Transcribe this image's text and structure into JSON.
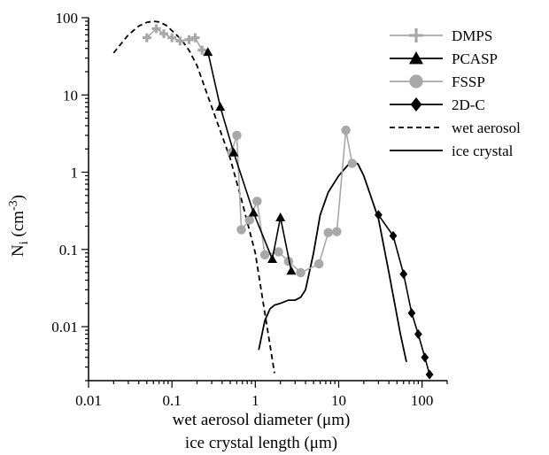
{
  "chart_data": {
    "type": "line",
    "xscale": "log",
    "yscale": "log",
    "xlim": [
      0.01,
      200
    ],
    "ylim": [
      0.002,
      100
    ],
    "xlabel_line1": "wet aerosol diameter (μm)",
    "xlabel_line2": "ice crystal length (μm)",
    "ylabel": {
      "base": "N",
      "sub": "i",
      "unit_open": " (cm",
      "unit_sup": "-3",
      "unit_close": ")"
    },
    "xticks": [
      {
        "value": 0.01,
        "label": "0.01"
      },
      {
        "value": 0.1,
        "label": "0.1"
      },
      {
        "value": 1,
        "label": "1"
      },
      {
        "value": 10,
        "label": "10"
      },
      {
        "value": 100,
        "label": "100"
      }
    ],
    "yticks": [
      {
        "value": 0.01,
        "label": "0.01"
      },
      {
        "value": 0.1,
        "label": "0.1"
      },
      {
        "value": 1,
        "label": "1"
      },
      {
        "value": 10,
        "label": "10"
      },
      {
        "value": 100,
        "label": "100"
      }
    ],
    "grid": false,
    "legend_position": "right",
    "series": [
      {
        "name": "DMPS",
        "color": "#a8a8a8",
        "marker": "plus",
        "x": [
          0.05,
          0.065,
          0.08,
          0.1,
          0.125,
          0.16,
          0.19,
          0.23
        ],
        "y": [
          55,
          72,
          62,
          55,
          50,
          52,
          55,
          38
        ]
      },
      {
        "name": "PCASP",
        "color": "#000000",
        "marker": "triangle",
        "x": [
          0.27,
          0.38,
          0.55,
          0.95,
          1.6,
          2.0,
          2.7
        ],
        "y": [
          36,
          7,
          1.8,
          0.3,
          0.075,
          0.26,
          0.053
        ]
      },
      {
        "name": "FSSP",
        "color": "#a8a8a8",
        "marker": "circle",
        "x": [
          0.52,
          0.6,
          0.68,
          0.85,
          1.05,
          1.3,
          1.9,
          2.5,
          3.5,
          5.8,
          7.5,
          9.5,
          12.2,
          14.5
        ],
        "y": [
          1.8,
          3.0,
          0.18,
          0.24,
          0.42,
          0.085,
          0.093,
          0.07,
          0.05,
          0.065,
          0.165,
          0.17,
          3.5,
          1.3
        ]
      },
      {
        "name": "2D-C",
        "color": "#000000",
        "marker": "diamond",
        "x": [
          30,
          45,
          60,
          75,
          90,
          108,
          123
        ],
        "y": [
          0.28,
          0.15,
          0.048,
          0.015,
          0.008,
          0.004,
          0.0024
        ]
      },
      {
        "name": "wet aerosol",
        "color": "#000000",
        "marker": "none",
        "dash": "dashed",
        "x": [
          0.02,
          0.03,
          0.04,
          0.05,
          0.06,
          0.07,
          0.085,
          0.1,
          0.13,
          0.16,
          0.2,
          0.3,
          0.5,
          0.7,
          1.0,
          1.3,
          1.7
        ],
        "y": [
          35,
          60,
          78,
          87,
          90,
          88,
          80,
          68,
          52,
          38,
          24,
          7,
          1.5,
          0.4,
          0.09,
          0.015,
          0.0025
        ]
      },
      {
        "name": "ice crystal",
        "color": "#000000",
        "marker": "none",
        "dash": "solid",
        "x": [
          1.1,
          1.3,
          1.5,
          1.7,
          2.0,
          2.5,
          3.0,
          3.5,
          4.0,
          5.0,
          6.0,
          7.5,
          10,
          13,
          15,
          17,
          20,
          30,
          40,
          55,
          65
        ],
        "y": [
          0.005,
          0.012,
          0.017,
          0.019,
          0.02,
          0.022,
          0.022,
          0.024,
          0.03,
          0.09,
          0.28,
          0.55,
          0.9,
          1.25,
          1.35,
          1.28,
          0.9,
          0.25,
          0.05,
          0.008,
          0.0035
        ]
      }
    ]
  }
}
